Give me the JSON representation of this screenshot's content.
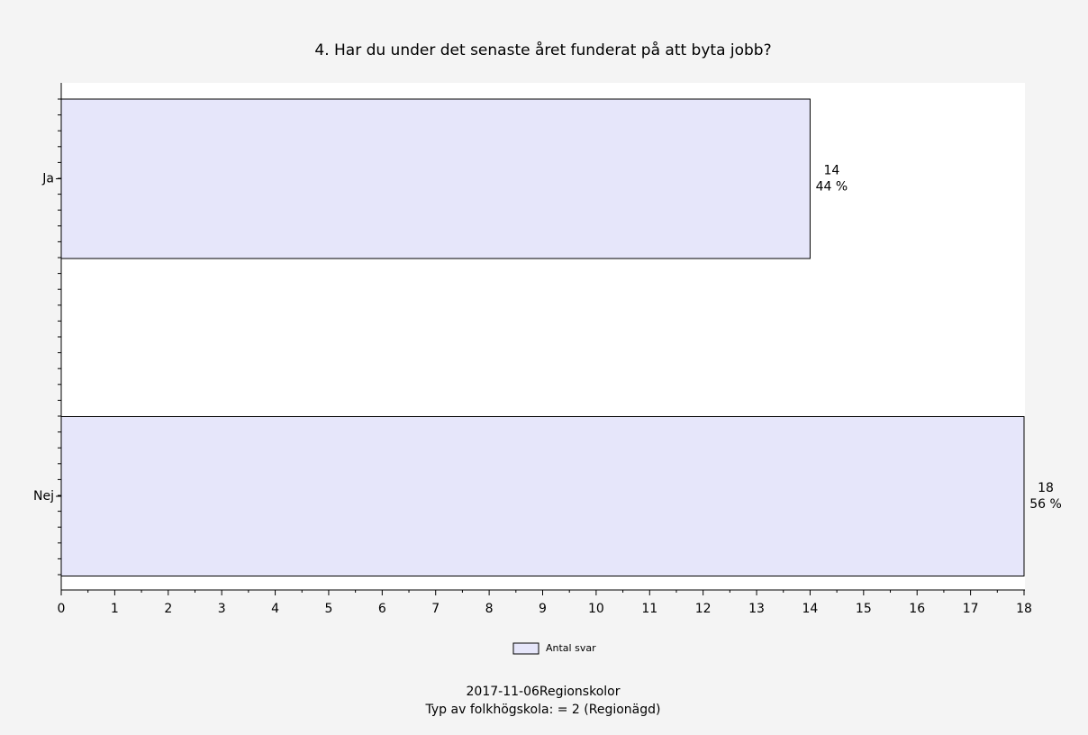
{
  "chart_data": {
    "type": "bar",
    "orientation": "horizontal",
    "title": "4. Har du under det senaste året funderat på att byta jobb?",
    "categories": [
      "Ja",
      "Nej"
    ],
    "series": [
      {
        "name": "Antal svar",
        "color": "#e6e6fa",
        "values": [
          14,
          18
        ]
      }
    ],
    "percentages": [
      44,
      56
    ],
    "percentage_labels": [
      "44 %",
      "56 %"
    ],
    "xlim": [
      0,
      18
    ],
    "xticks": [
      0,
      1,
      2,
      3,
      4,
      5,
      6,
      7,
      8,
      9,
      10,
      11,
      12,
      13,
      14,
      15,
      16,
      17,
      18
    ],
    "legend": "bottom",
    "footer": [
      "2017-11-06Regionskolor",
      "Typ av folkhögskola: = 2 (Regionägd)"
    ]
  }
}
